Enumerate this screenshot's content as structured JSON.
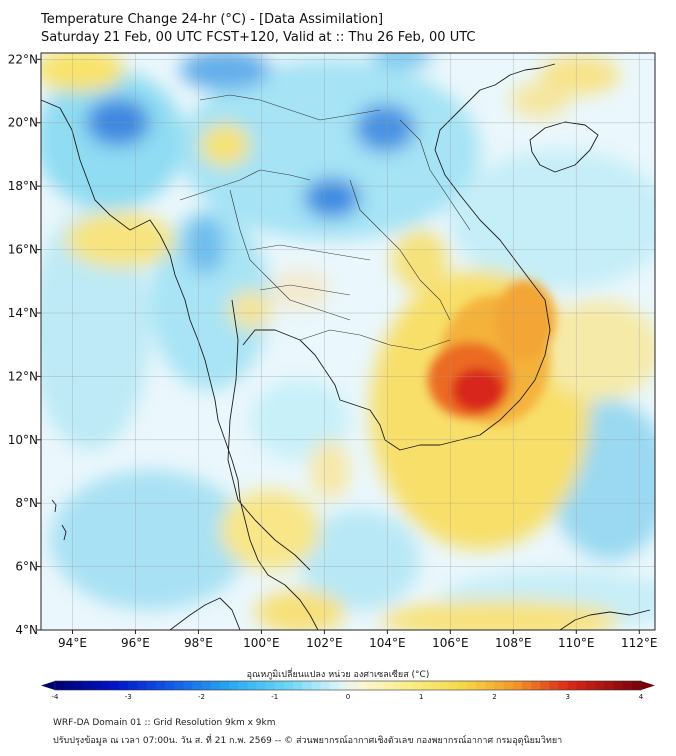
{
  "title": {
    "line1": "Temperature Change 24-hr (°C) - [Data Assimilation]",
    "line2": "Saturday 21 Feb, 00 UTC FCST+120, Valid at :: Thu 26 Feb, 00 UTC"
  },
  "map": {
    "lon_range": [
      93,
      112.5
    ],
    "lat_range": [
      4,
      22.2
    ],
    "lon_ticks": [
      {
        "value": 94,
        "label": "94°E"
      },
      {
        "value": 96,
        "label": "96°E"
      },
      {
        "value": 98,
        "label": "98°E"
      },
      {
        "value": 100,
        "label": "100°E"
      },
      {
        "value": 102,
        "label": "102°E"
      },
      {
        "value": 104,
        "label": "104°E"
      },
      {
        "value": 106,
        "label": "106°E"
      },
      {
        "value": 108,
        "label": "108°E"
      },
      {
        "value": 110,
        "label": "110°E"
      },
      {
        "value": 112,
        "label": "112°E"
      }
    ],
    "lat_ticks": [
      {
        "value": 4,
        "label": "4°N"
      },
      {
        "value": 6,
        "label": "6°N"
      },
      {
        "value": 8,
        "label": "8°N"
      },
      {
        "value": 10,
        "label": "10°N"
      },
      {
        "value": 12,
        "label": "12°N"
      },
      {
        "value": 14,
        "label": "14°N"
      },
      {
        "value": 16,
        "label": "16°N"
      },
      {
        "value": 18,
        "label": "18°N"
      },
      {
        "value": 20,
        "label": "20°N"
      },
      {
        "value": 22,
        "label": "22°N"
      }
    ]
  },
  "colorbar": {
    "title": "อุณหภูมิเปลี่ยนแปลง หน่วย องศาเซลเซียส (°C)",
    "min": -4,
    "max": 4,
    "ticks": [
      "-4",
      "-3",
      "-2",
      "-1",
      "0",
      "1",
      "2",
      "3",
      "4"
    ]
  },
  "footer": {
    "line1": "WRF-DA Domain 01 :: Grid Resolution 9km x 9km",
    "line2": "ปรับปรุงข้อมูล ณ เวลา 07:00น. วัน ส. ที่ 21 ก.พ. 2569 -- © ส่วนพยากรณ์อากาศเชิงตัวเลข กองพยากรณ์อากาศ กรมอุตุนิยมวิทยา"
  }
}
